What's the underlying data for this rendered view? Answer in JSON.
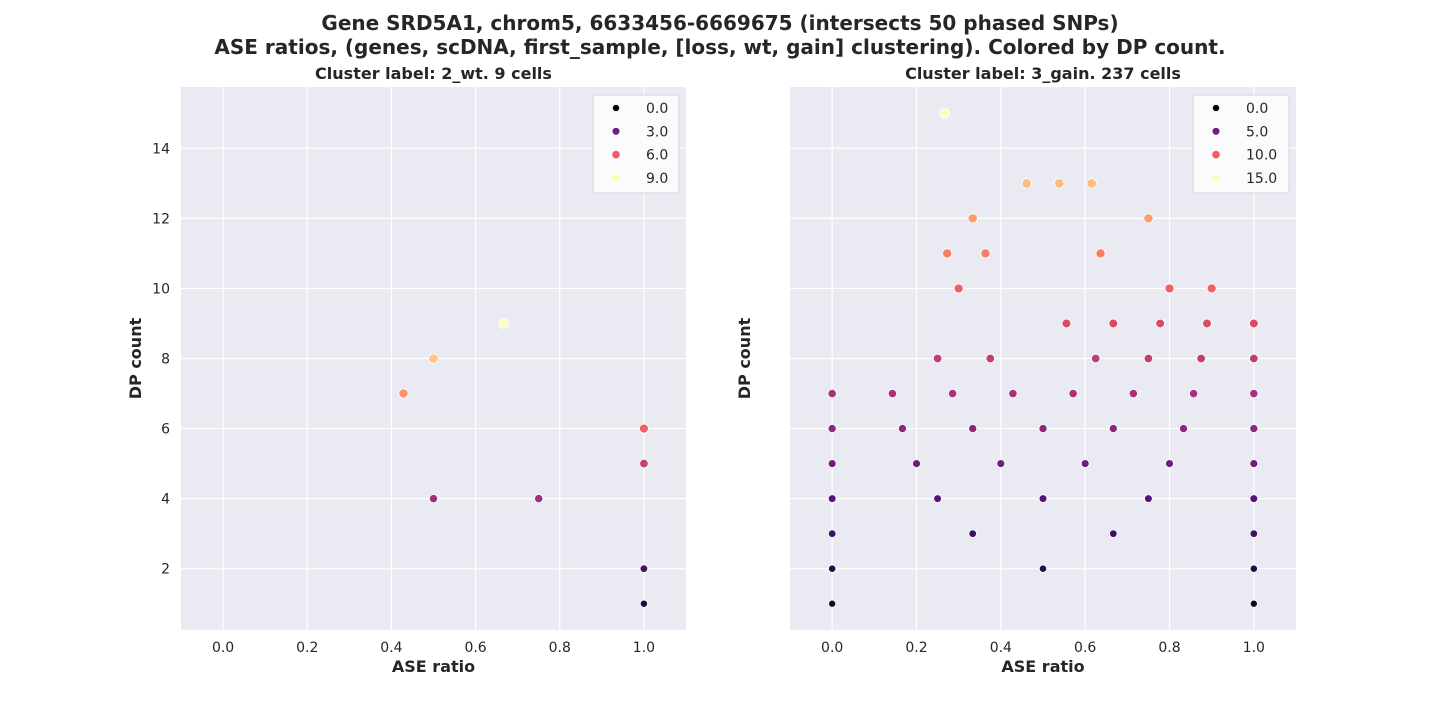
{
  "suptitle": {
    "line1": "Gene SRD5A1, chrom5, 6633456-6669675 (intersects 50 phased SNPs)",
    "line2": "ASE ratios, (genes, scDNA, first_sample, [loss, wt, gain] clustering). Colored by DP count."
  },
  "chart_data": [
    {
      "type": "scatter",
      "title": "Cluster label: 2_wt. 9 cells",
      "xlabel": "ASE ratio",
      "ylabel": "DP count",
      "xlim": [
        -0.1,
        1.1
      ],
      "ylim": [
        0.25,
        15.75
      ],
      "xticks": [
        0.0,
        0.2,
        0.4,
        0.6,
        0.8,
        1.0
      ],
      "xtick_labels": [
        "0.0",
        "0.2",
        "0.4",
        "0.6",
        "0.8",
        "1.0"
      ],
      "yticks": [
        2,
        4,
        6,
        8,
        10,
        12,
        14
      ],
      "ytick_labels": [
        "2",
        "4",
        "6",
        "8",
        "10",
        "12",
        "14"
      ],
      "show_y_ticklabels": true,
      "grid": true,
      "color_max": 9,
      "legend": {
        "placement": "top-right",
        "entries": [
          "0.0",
          "3.0",
          "6.0",
          "9.0"
        ],
        "values": [
          0,
          3,
          6,
          9
        ]
      },
      "points": [
        {
          "x": 0.4286,
          "y": 7
        },
        {
          "x": 0.5,
          "y": 8
        },
        {
          "x": 0.6667,
          "y": 9
        },
        {
          "x": 0.5,
          "y": 4
        },
        {
          "x": 0.75,
          "y": 4
        },
        {
          "x": 1.0,
          "y": 6
        },
        {
          "x": 1.0,
          "y": 5
        },
        {
          "x": 1.0,
          "y": 2
        },
        {
          "x": 1.0,
          "y": 1
        }
      ]
    },
    {
      "type": "scatter",
      "title": "Cluster label: 3_gain. 237 cells",
      "xlabel": "ASE ratio",
      "ylabel": "DP count",
      "xlim": [
        -0.1,
        1.1
      ],
      "ylim": [
        0.25,
        15.75
      ],
      "xticks": [
        0.0,
        0.2,
        0.4,
        0.6,
        0.8,
        1.0
      ],
      "xtick_labels": [
        "0.0",
        "0.2",
        "0.4",
        "0.6",
        "0.8",
        "1.0"
      ],
      "yticks": [
        2,
        4,
        6,
        8,
        10,
        12,
        14
      ],
      "ytick_labels": [
        "2",
        "4",
        "6",
        "8",
        "10",
        "12",
        "14"
      ],
      "show_y_ticklabels": false,
      "grid": true,
      "color_max": 15,
      "legend": {
        "placement": "top-right",
        "entries": [
          "0.0",
          "5.0",
          "10.0",
          "15.0"
        ],
        "values": [
          0,
          5,
          10,
          15
        ]
      },
      "points": [
        {
          "x": 0.2667,
          "y": 15
        },
        {
          "x": 0.4615,
          "y": 13
        },
        {
          "x": 0.5385,
          "y": 13
        },
        {
          "x": 0.6154,
          "y": 13
        },
        {
          "x": 0.3333,
          "y": 12
        },
        {
          "x": 0.75,
          "y": 12
        },
        {
          "x": 0.2727,
          "y": 11
        },
        {
          "x": 0.3636,
          "y": 11
        },
        {
          "x": 0.6364,
          "y": 11
        },
        {
          "x": 0.3,
          "y": 10
        },
        {
          "x": 0.8,
          "y": 10
        },
        {
          "x": 0.9,
          "y": 10
        },
        {
          "x": 0.5556,
          "y": 9
        },
        {
          "x": 0.6667,
          "y": 9
        },
        {
          "x": 0.7778,
          "y": 9
        },
        {
          "x": 0.8889,
          "y": 9
        },
        {
          "x": 1.0,
          "y": 9
        },
        {
          "x": 0.25,
          "y": 8
        },
        {
          "x": 0.375,
          "y": 8
        },
        {
          "x": 0.625,
          "y": 8
        },
        {
          "x": 0.75,
          "y": 8
        },
        {
          "x": 0.875,
          "y": 8
        },
        {
          "x": 1.0,
          "y": 8
        },
        {
          "x": 0.0,
          "y": 7
        },
        {
          "x": 0.1429,
          "y": 7
        },
        {
          "x": 0.2857,
          "y": 7
        },
        {
          "x": 0.4286,
          "y": 7
        },
        {
          "x": 0.5714,
          "y": 7
        },
        {
          "x": 0.7143,
          "y": 7
        },
        {
          "x": 0.8571,
          "y": 7
        },
        {
          "x": 1.0,
          "y": 7
        },
        {
          "x": 0.0,
          "y": 6
        },
        {
          "x": 0.1667,
          "y": 6
        },
        {
          "x": 0.3333,
          "y": 6
        },
        {
          "x": 0.5,
          "y": 6
        },
        {
          "x": 0.6667,
          "y": 6
        },
        {
          "x": 0.8333,
          "y": 6
        },
        {
          "x": 1.0,
          "y": 6
        },
        {
          "x": 0.0,
          "y": 5
        },
        {
          "x": 0.2,
          "y": 5
        },
        {
          "x": 0.4,
          "y": 5
        },
        {
          "x": 0.6,
          "y": 5
        },
        {
          "x": 0.8,
          "y": 5
        },
        {
          "x": 1.0,
          "y": 5
        },
        {
          "x": 0.0,
          "y": 4
        },
        {
          "x": 0.25,
          "y": 4
        },
        {
          "x": 0.5,
          "y": 4
        },
        {
          "x": 0.75,
          "y": 4
        },
        {
          "x": 1.0,
          "y": 4
        },
        {
          "x": 0.0,
          "y": 3
        },
        {
          "x": 0.3333,
          "y": 3
        },
        {
          "x": 0.6667,
          "y": 3
        },
        {
          "x": 1.0,
          "y": 3
        },
        {
          "x": 0.0,
          "y": 2
        },
        {
          "x": 0.5,
          "y": 2
        },
        {
          "x": 1.0,
          "y": 2
        },
        {
          "x": 0.0,
          "y": 1
        },
        {
          "x": 1.0,
          "y": 1
        }
      ]
    }
  ]
}
